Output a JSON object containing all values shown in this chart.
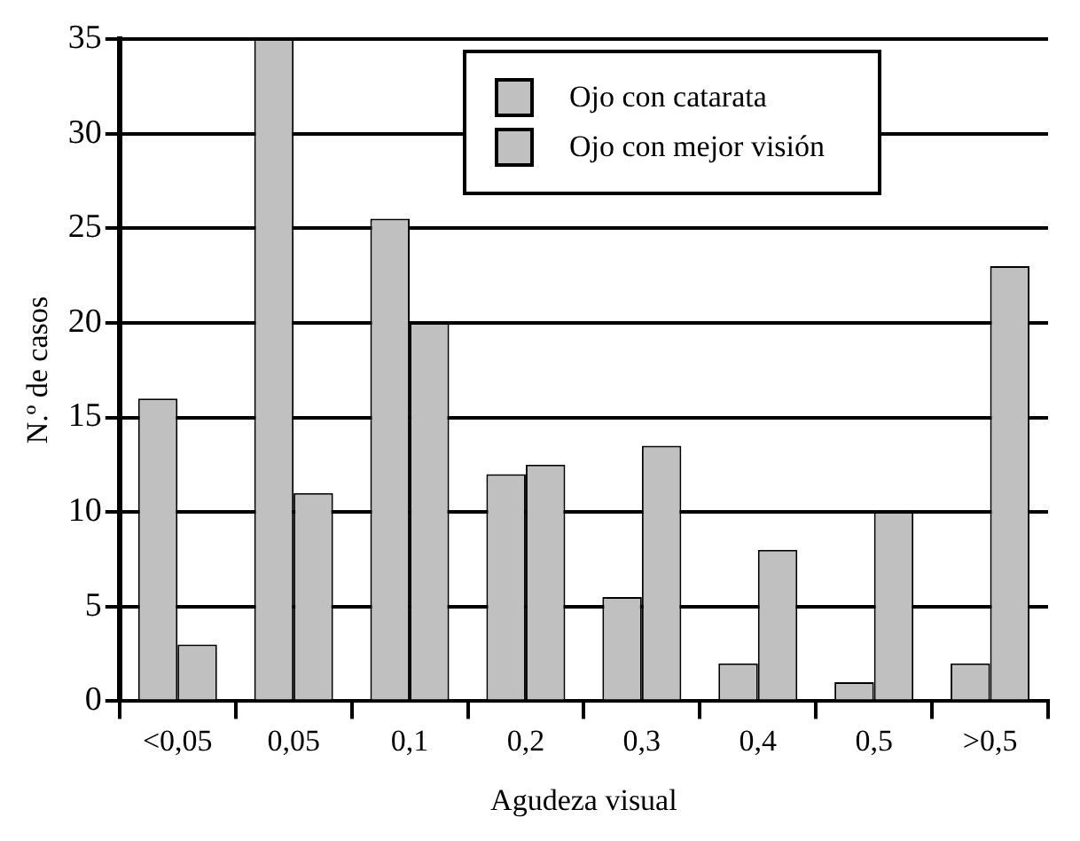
{
  "chart_data": {
    "type": "bar",
    "xlabel": "Agudeza visual",
    "ylabel": "N.º de casos",
    "categories": [
      "<0,05",
      "0,05",
      "0,1",
      "0,2",
      "0,3",
      "0,4",
      "0,5",
      ">0,5"
    ],
    "series": [
      {
        "name": "Ojo con catarata",
        "color": "#c0c0c0",
        "values": [
          16,
          35,
          25.5,
          12,
          5.5,
          2,
          1,
          2
        ]
      },
      {
        "name": "Ojo con mejor visión",
        "color": "#c0c0c0",
        "values": [
          3,
          11,
          20,
          12.5,
          13.5,
          8,
          10,
          23
        ]
      }
    ],
    "ylim": [
      0,
      35
    ],
    "yticks": [
      0,
      5,
      10,
      15,
      20,
      25,
      30,
      35
    ],
    "grid": "y",
    "legend": "top right"
  }
}
